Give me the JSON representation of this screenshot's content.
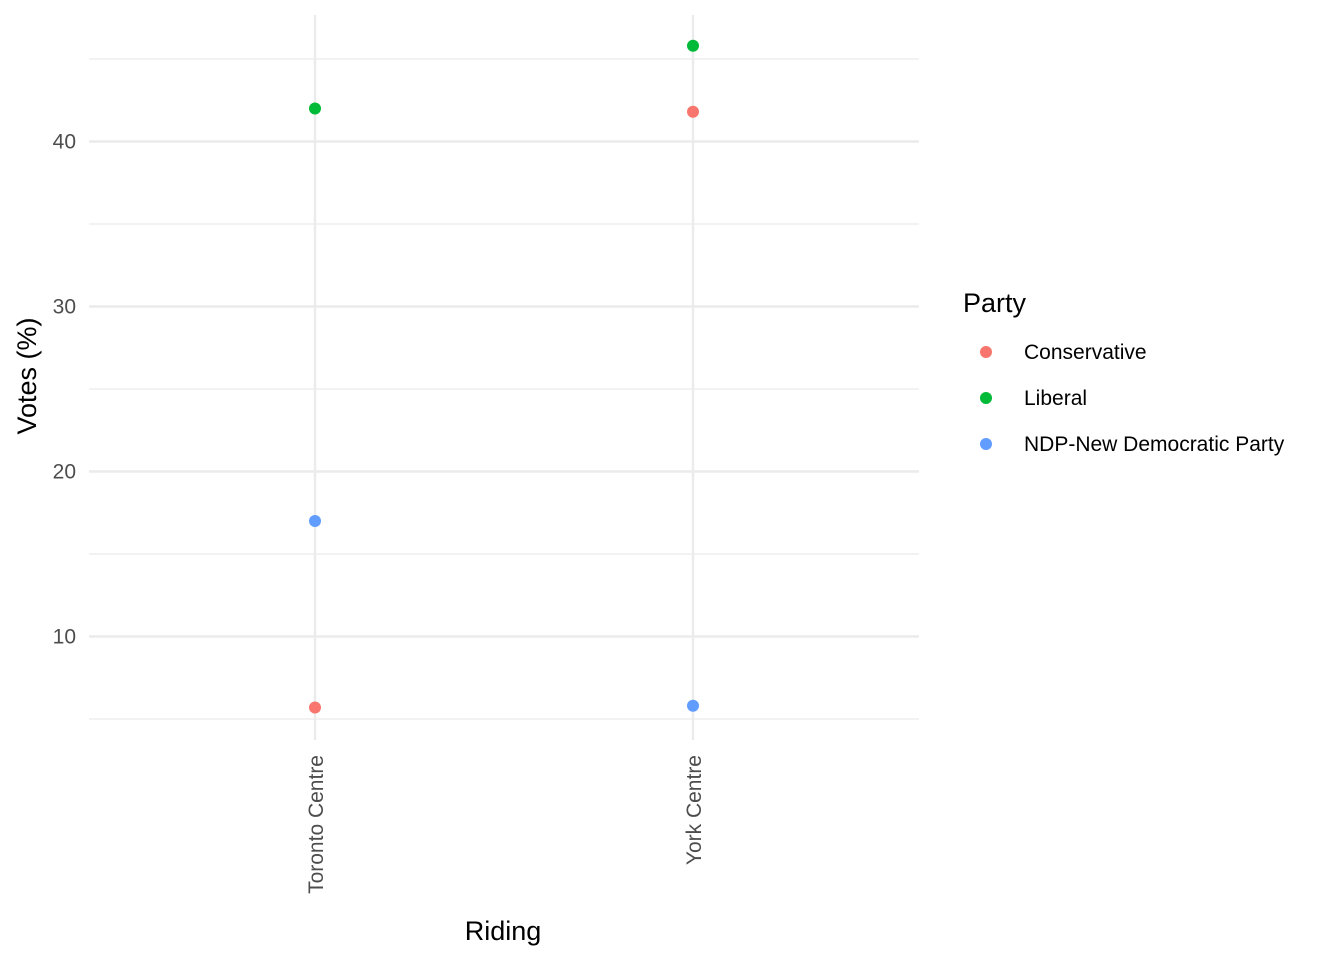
{
  "chart_data": {
    "type": "scatter",
    "title": "",
    "xlabel": "Riding",
    "ylabel": "Votes (%)",
    "categories": [
      "Toronto Centre",
      "York Centre"
    ],
    "ylim": [
      5,
      45.9
    ],
    "yticks": [
      10,
      20,
      30,
      40
    ],
    "grid": true,
    "legend": {
      "title": "Party",
      "position": "right"
    },
    "series": [
      {
        "name": "Conservative",
        "color": "#F8766D",
        "values": [
          5.7,
          41.8
        ]
      },
      {
        "name": "Liberal",
        "color": "#00BA38",
        "values": [
          42.0,
          45.8
        ]
      },
      {
        "name": "NDP-New Democratic Party",
        "color": "#619CFF",
        "values": [
          17.0,
          5.8
        ]
      }
    ]
  }
}
